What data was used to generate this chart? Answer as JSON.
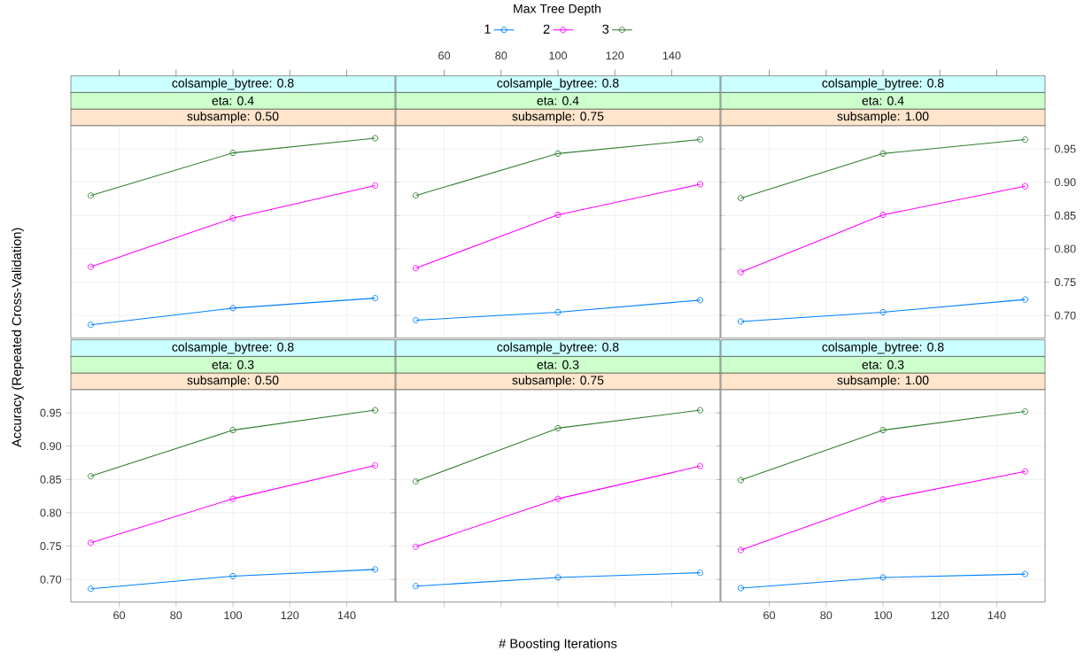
{
  "chart_data": [
    {
      "type": "line",
      "title": "colsample_bytree: 0.8",
      "subtitle": "eta: 0.4",
      "annotations": [
        "subsample: 0.50"
      ],
      "legend": "top",
      "legend_title": "Max Tree Depth",
      "ylabel": "Accuracy (Repeated Cross-Validation)",
      "x": [
        50,
        100,
        150
      ],
      "xlim": [
        43,
        157
      ],
      "ylim": [
        0.666,
        0.985
      ],
      "xticks": [
        60,
        80,
        100,
        120,
        140
      ],
      "yticks": [
        0.7,
        0.75,
        0.8,
        0.85,
        0.9,
        0.95
      ],
      "grid": true,
      "marker": "circle",
      "line_style": "solid",
      "tick_labels": false,
      "series": [
        {
          "name": "1",
          "color": "#0080ff",
          "values": [
            0.686,
            0.711,
            0.726
          ]
        },
        {
          "name": "2",
          "color": "#ff00ff",
          "values": [
            0.773,
            0.846,
            0.895
          ]
        },
        {
          "name": "3",
          "color": "#2f7f2f",
          "values": [
            0.88,
            0.944,
            0.966
          ]
        }
      ]
    },
    {
      "type": "line",
      "title": "colsample_bytree: 0.8",
      "subtitle": "eta: 0.4",
      "annotations": [
        "subsample: 0.75"
      ],
      "x": [
        50,
        100,
        150
      ],
      "xlim": [
        43,
        157
      ],
      "ylim": [
        0.666,
        0.985
      ],
      "xticks": [
        60,
        80,
        100,
        120,
        140
      ],
      "yticks": [
        0.7,
        0.75,
        0.8,
        0.85,
        0.9,
        0.95
      ],
      "grid": true,
      "marker": "circle",
      "line_style": "solid",
      "tick_labels": "x",
      "series": [
        {
          "color": "#0080ff",
          "values": [
            0.693,
            0.705,
            0.723
          ]
        },
        {
          "color": "#ff00ff",
          "values": [
            0.771,
            0.851,
            0.897
          ]
        },
        {
          "color": "#2f7f2f",
          "values": [
            0.88,
            0.943,
            0.964
          ]
        }
      ]
    },
    {
      "type": "line",
      "title": "colsample_bytree: 0.8",
      "subtitle": "eta: 0.4",
      "annotations": [
        "subsample: 1.00"
      ],
      "x": [
        50,
        100,
        150
      ],
      "xlim": [
        43,
        157
      ],
      "ylim": [
        0.666,
        0.985
      ],
      "xticks": [
        60,
        80,
        100,
        120,
        140
      ],
      "yticks": [
        {
          "value": 0.7,
          "label": "0.70"
        },
        {
          "value": 0.75,
          "label": "0.75"
        },
        {
          "value": 0.8,
          "label": "0.80"
        },
        {
          "value": 0.85,
          "label": "0.85"
        },
        {
          "value": 0.9,
          "label": "0.90"
        },
        {
          "value": 0.95,
          "label": "0.95"
        }
      ],
      "grid": true,
      "marker": "circle",
      "line_style": "solid",
      "tick_labels": "y",
      "series": [
        {
          "color": "#0080ff",
          "values": [
            0.691,
            0.705,
            0.724
          ]
        },
        {
          "color": "#ff00ff",
          "values": [
            0.765,
            0.851,
            0.894
          ]
        },
        {
          "color": "#2f7f2f",
          "values": [
            0.876,
            0.943,
            0.964
          ]
        }
      ]
    },
    {
      "type": "line",
      "title": "colsample_bytree: 0.8",
      "subtitle": "eta: 0.3",
      "annotations": [
        "subsample: 0.50"
      ],
      "x": [
        50,
        100,
        150
      ],
      "xlim": [
        43,
        157
      ],
      "ylim": [
        0.666,
        0.985
      ],
      "xticks": [
        60,
        80,
        100,
        120,
        140
      ],
      "yticks": [
        {
          "value": 0.7,
          "label": "0.70"
        },
        {
          "value": 0.75,
          "label": "0.75"
        },
        {
          "value": 0.8,
          "label": "0.80"
        },
        {
          "value": 0.85,
          "label": "0.85"
        },
        {
          "value": 0.9,
          "label": "0.90"
        },
        {
          "value": 0.95,
          "label": "0.95"
        }
      ],
      "grid": true,
      "marker": "circle",
      "line_style": "solid",
      "series": [
        {
          "color": "#0080ff",
          "values": [
            0.686,
            0.705,
            0.715
          ]
        },
        {
          "color": "#ff00ff",
          "values": [
            0.755,
            0.821,
            0.871
          ]
        },
        {
          "color": "#2f7f2f",
          "values": [
            0.855,
            0.924,
            0.954
          ]
        }
      ]
    },
    {
      "type": "line",
      "title": "colsample_bytree: 0.8",
      "subtitle": "eta: 0.3",
      "annotations": [
        "subsample: 0.75"
      ],
      "xlabel": "# Boosting Iterations",
      "x": [
        50,
        100,
        150
      ],
      "xlim": [
        43,
        157
      ],
      "ylim": [
        0.666,
        0.985
      ],
      "xticks": [
        60,
        80,
        100,
        120,
        140
      ],
      "yticks": [
        0.7,
        0.75,
        0.8,
        0.85,
        0.9,
        0.95
      ],
      "grid": true,
      "marker": "circle",
      "line_style": "solid",
      "tick_labels": false,
      "series": [
        {
          "color": "#0080ff",
          "values": [
            0.69,
            0.703,
            0.71
          ]
        },
        {
          "color": "#ff00ff",
          "values": [
            0.749,
            0.821,
            0.87
          ]
        },
        {
          "color": "#2f7f2f",
          "values": [
            0.847,
            0.927,
            0.954
          ]
        }
      ]
    },
    {
      "type": "line",
      "title": "colsample_bytree: 0.8",
      "subtitle": "eta: 0.3",
      "annotations": [
        "subsample: 1.00"
      ],
      "x": [
        50,
        100,
        150
      ],
      "xlim": [
        43,
        157
      ],
      "ylim": [
        0.666,
        0.985
      ],
      "xticks": [
        60,
        80,
        100,
        120,
        140
      ],
      "yticks": [
        0.7,
        0.75,
        0.8,
        0.85,
        0.9,
        0.95
      ],
      "grid": true,
      "marker": "circle",
      "line_style": "solid",
      "tick_labels": "x",
      "series": [
        {
          "color": "#0080ff",
          "values": [
            0.687,
            0.703,
            0.708
          ]
        },
        {
          "color": "#ff00ff",
          "values": [
            0.744,
            0.82,
            0.862
          ]
        },
        {
          "color": "#2f7f2f",
          "values": [
            0.849,
            0.924,
            0.952
          ]
        }
      ]
    }
  ]
}
